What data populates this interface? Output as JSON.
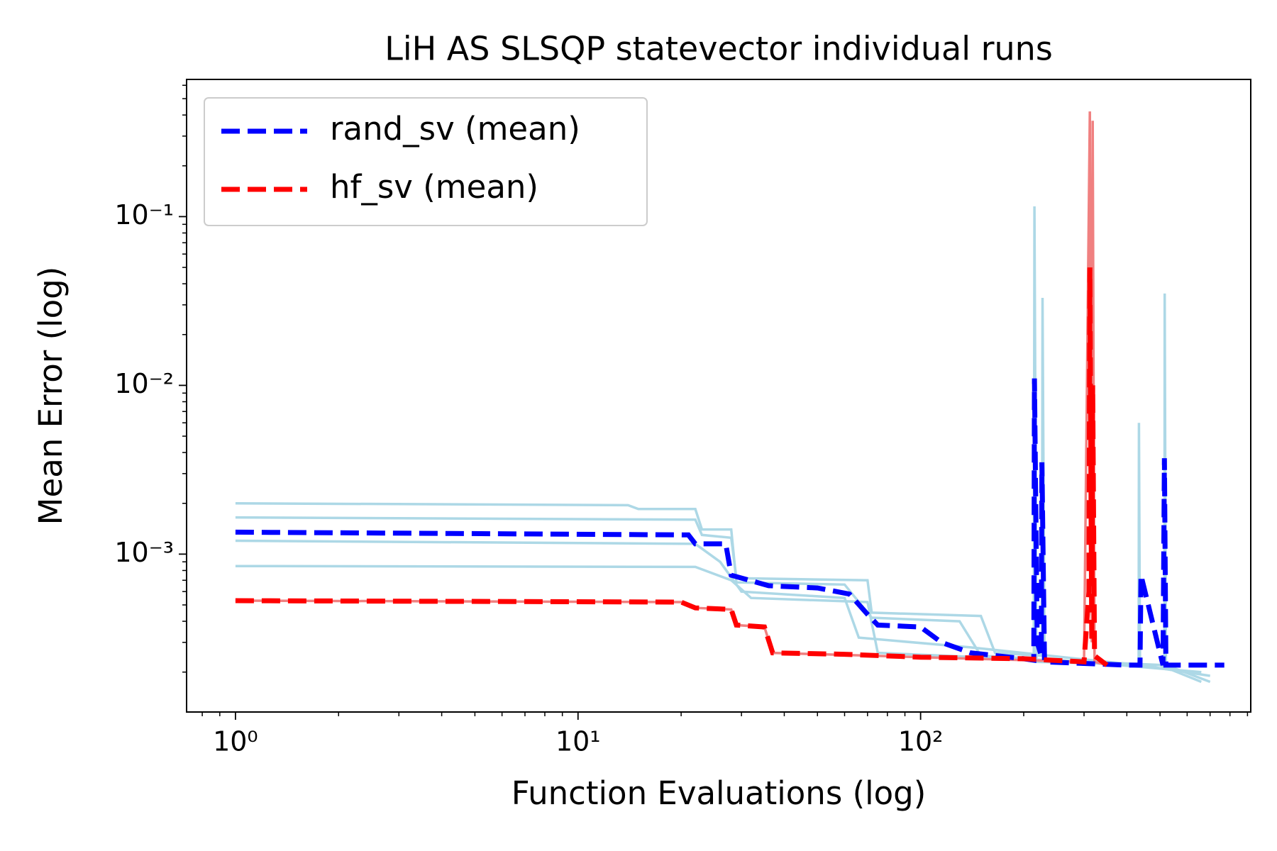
{
  "chart_data": {
    "type": "line",
    "title": "LiH AS SLSQP statevector individual runs",
    "xlabel": "Function Evaluations (log)",
    "ylabel": "Mean Error (log)",
    "xscale": "log",
    "yscale": "log",
    "xlim": [
      0.72,
      920
    ],
    "ylim": [
      0.000116,
      0.65
    ],
    "xticks": [
      {
        "value": 1,
        "label": "10⁰"
      },
      {
        "value": 10,
        "label": "10¹"
      },
      {
        "value": 100,
        "label": "10²"
      }
    ],
    "yticks": [
      {
        "value": 0.001,
        "label": "10⁻³"
      },
      {
        "value": 0.01,
        "label": "10⁻²"
      },
      {
        "value": 0.1,
        "label": "10⁻¹"
      }
    ],
    "xminorticks": [
      0.8,
      0.9,
      2,
      3,
      4,
      5,
      6,
      7,
      8,
      9,
      20,
      30,
      40,
      50,
      60,
      70,
      80,
      90,
      200,
      300,
      400,
      500,
      600,
      700,
      800,
      900
    ],
    "yminorticks": [
      0.0002,
      0.0003,
      0.0004,
      0.0005,
      0.0006,
      0.0007,
      0.0008,
      0.0009,
      0.002,
      0.003,
      0.004,
      0.005,
      0.006,
      0.007,
      0.008,
      0.009,
      0.02,
      0.03,
      0.04,
      0.05,
      0.06,
      0.07,
      0.08,
      0.09,
      0.2,
      0.3,
      0.4,
      0.5,
      0.6
    ],
    "legend": "upper left",
    "series": [
      {
        "color": "#add8e6",
        "style": "solid",
        "x": [
          1,
          14,
          15,
          22,
          23,
          28,
          29,
          60,
          72,
          130,
          150,
          214,
          215,
          218,
          500,
          660
        ],
        "values": [
          0.002,
          0.00195,
          0.00185,
          0.00185,
          0.0014,
          0.0014,
          0.00068,
          0.00066,
          0.00042,
          0.0004,
          0.00025,
          0.00024,
          0.115,
          0.00023,
          0.00022,
          0.000175
        ]
      },
      {
        "color": "#add8e6",
        "style": "solid",
        "x": [
          1,
          22,
          23,
          28,
          29,
          70,
          72,
          150,
          165,
          226,
          227,
          230,
          660
        ],
        "values": [
          0.00165,
          0.0016,
          0.0013,
          0.00125,
          0.00072,
          0.0007,
          0.00045,
          0.00043,
          0.00026,
          0.00025,
          0.033,
          0.00024,
          0.0002
        ]
      },
      {
        "color": "#add8e6",
        "style": "solid",
        "x": [
          1,
          22,
          26,
          30,
          60,
          66,
          140,
          433,
          434,
          437,
          700
        ],
        "values": [
          0.0012,
          0.00115,
          0.0009,
          0.0006,
          0.00055,
          0.00032,
          0.00028,
          0.00022,
          0.006,
          0.00022,
          0.00019
        ]
      },
      {
        "color": "#add8e6",
        "style": "solid",
        "x": [
          1,
          22,
          28,
          32,
          70,
          75,
          515,
          516,
          520,
          700
        ],
        "values": [
          0.00085,
          0.00084,
          0.0007,
          0.00055,
          0.00052,
          0.00026,
          0.00022,
          0.035,
          0.00022,
          0.000175
        ]
      },
      {
        "color": "#f08080",
        "style": "solid",
        "x": [
          1,
          20,
          22,
          28,
          29,
          35,
          37,
          100,
          300,
          312,
          316,
          318,
          322,
          350
        ],
        "values": [
          0.00053,
          0.00052,
          0.00048,
          0.00047,
          0.00038,
          0.00037,
          0.00026,
          0.000245,
          0.00023,
          0.42,
          0.0003,
          0.37,
          0.00023,
          0.00022
        ]
      },
      {
        "name": "rand_sv (mean)",
        "color": "#0000ff",
        "style": "dashed",
        "x": [
          1,
          21,
          22,
          27,
          28,
          36,
          50,
          62,
          70,
          75,
          100,
          115,
          140,
          200,
          214,
          215,
          219,
          225,
          226,
          230,
          400,
          437,
          440,
          510,
          515,
          520,
          770
        ],
        "values": [
          0.00135,
          0.0013,
          0.00115,
          0.00115,
          0.00075,
          0.00065,
          0.00063,
          0.00058,
          0.00044,
          0.00038,
          0.00037,
          0.0003,
          0.00026,
          0.00024,
          0.000235,
          0.011,
          0.0003,
          0.00025,
          0.0035,
          0.00023,
          0.00022,
          0.00022,
          0.00075,
          0.00022,
          0.0037,
          0.00022,
          0.00022
        ]
      },
      {
        "name": "hf_sv (mean)",
        "color": "#ff0000",
        "style": "dashed",
        "x": [
          1,
          20,
          22,
          28,
          29,
          35,
          37,
          60,
          100,
          200,
          300,
          310,
          312,
          316,
          318,
          322,
          350
        ],
        "values": [
          0.00053,
          0.00052,
          0.00048,
          0.00047,
          0.00038,
          0.00037,
          0.00026,
          0.000255,
          0.000245,
          0.00024,
          0.00023,
          0.0006,
          0.05,
          0.0003,
          0.01,
          0.00025,
          0.00022
        ]
      }
    ]
  }
}
